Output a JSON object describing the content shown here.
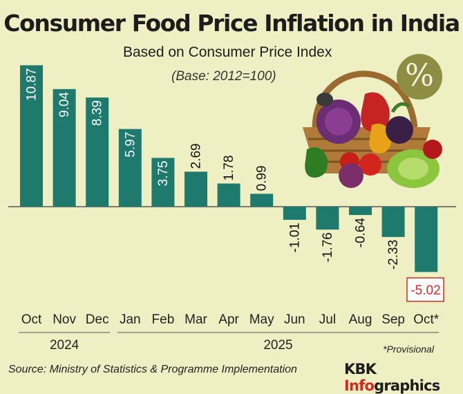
{
  "title": "Consumer Food Price Inflation in India",
  "subtitle": "Based on Consumer Price Index",
  "base_note": "(Base: 2012=100)",
  "provisional_note": "*Provisional",
  "source": "Source: Ministry of Statistics & Programme Implementation",
  "brand": {
    "main": "KBK ",
    "accent": "Info",
    "rest": "graphics"
  },
  "badge_symbol": "%",
  "colors": {
    "bar": "#1e7a6c",
    "background": "#eef0c4",
    "negative_label": "#d42a1e",
    "axis": "#555555"
  },
  "chart_data": {
    "type": "bar",
    "title": "Consumer Food Price Inflation in India",
    "ylabel": "",
    "xlabel": "",
    "ylim": [
      -5.5,
      11.5
    ],
    "categories": [
      "Oct",
      "Nov",
      "Dec",
      "Jan",
      "Feb",
      "Mar",
      "Apr",
      "May",
      "Jun",
      "Jul",
      "Aug",
      "Sep",
      "Oct*"
    ],
    "values": [
      10.87,
      9.04,
      8.39,
      5.97,
      3.75,
      2.69,
      1.78,
      0.99,
      -1.01,
      -1.76,
      -0.64,
      -2.33,
      -5.02
    ],
    "labels": [
      "10.87",
      "9.04",
      "8.39",
      "5.97",
      "3.75",
      "2.69",
      "1.78",
      "0.99",
      "-1.01",
      "-1.76",
      "-0.64",
      "-2.33",
      "-5.02"
    ],
    "years": [
      {
        "label": "2024",
        "from": 0,
        "to": 2
      },
      {
        "label": "2025",
        "from": 3,
        "to": 12
      }
    ],
    "highlight_index": 12
  }
}
